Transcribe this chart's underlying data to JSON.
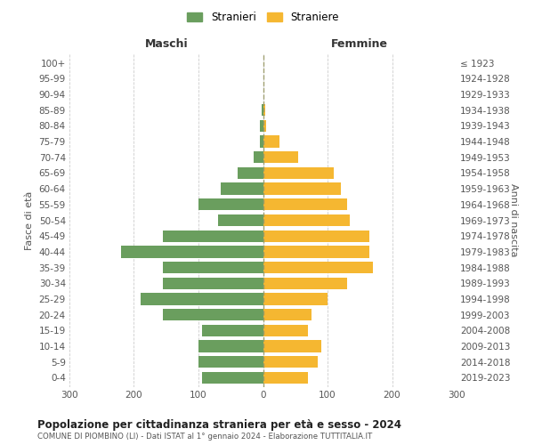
{
  "age_groups": [
    "0-4",
    "5-9",
    "10-14",
    "15-19",
    "20-24",
    "25-29",
    "30-34",
    "35-39",
    "40-44",
    "45-49",
    "50-54",
    "55-59",
    "60-64",
    "65-69",
    "70-74",
    "75-79",
    "80-84",
    "85-89",
    "90-94",
    "95-99",
    "100+"
  ],
  "birth_years": [
    "2019-2023",
    "2014-2018",
    "2009-2013",
    "2004-2008",
    "1999-2003",
    "1994-1998",
    "1989-1993",
    "1984-1988",
    "1979-1983",
    "1974-1978",
    "1969-1973",
    "1964-1968",
    "1959-1963",
    "1954-1958",
    "1949-1953",
    "1944-1948",
    "1939-1943",
    "1934-1938",
    "1929-1933",
    "1924-1928",
    "≤ 1923"
  ],
  "males": [
    95,
    100,
    100,
    95,
    155,
    190,
    155,
    155,
    220,
    155,
    70,
    100,
    65,
    40,
    15,
    5,
    5,
    2,
    0,
    0,
    0
  ],
  "females": [
    70,
    85,
    90,
    70,
    75,
    100,
    130,
    170,
    165,
    165,
    135,
    130,
    120,
    110,
    55,
    25,
    5,
    3,
    0,
    0,
    0
  ],
  "male_color": "#6a9e5e",
  "female_color": "#f5b731",
  "background_color": "#ffffff",
  "grid_color": "#cccccc",
  "title": "Popolazione per cittadinanza straniera per età e sesso - 2024",
  "subtitle": "COMUNE DI PIOMBINO (LI) - Dati ISTAT al 1° gennaio 2024 - Elaborazione TUTTITALIA.IT",
  "xlabel_left": "Maschi",
  "xlabel_right": "Femmine",
  "ylabel_left": "Fasce di età",
  "ylabel_right": "Anni di nascita",
  "legend_male": "Stranieri",
  "legend_female": "Straniere",
  "xlim": 300,
  "bar_height": 0.75
}
